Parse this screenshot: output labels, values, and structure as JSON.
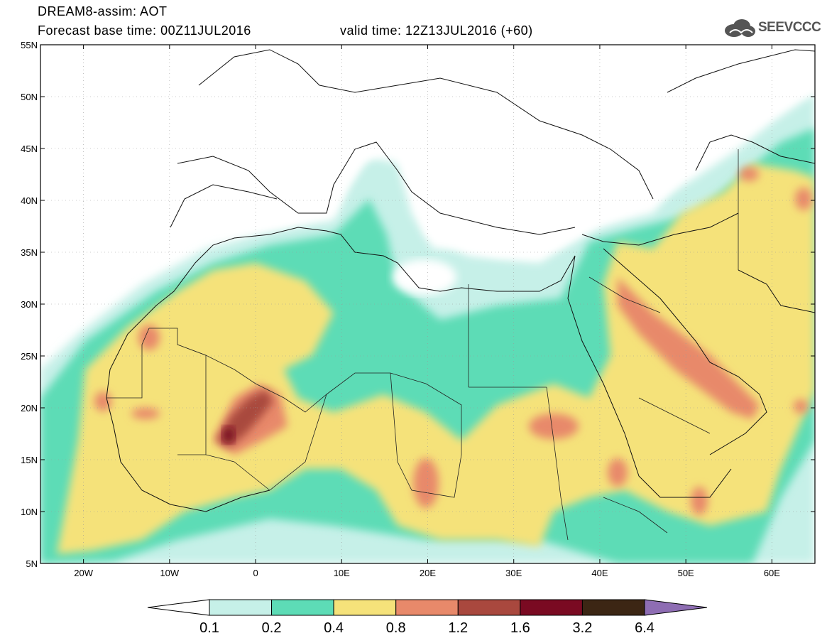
{
  "title": {
    "line1": "DREAM8-assim: AOT",
    "base_time": "Forecast base time: 00Z11JUL2016",
    "valid_time": "valid time: 12Z13JUL2016 (+60)"
  },
  "logo": {
    "text": "SEEVCCC",
    "icon": "cloud-icon"
  },
  "map": {
    "lat_labels": [
      "55N",
      "50N",
      "45N",
      "40N",
      "35N",
      "30N",
      "25N",
      "20N",
      "15N",
      "10N",
      "5N"
    ],
    "lon_labels": [
      "20W",
      "10W",
      "0",
      "10E",
      "20E",
      "30E",
      "40E",
      "50E",
      "60E"
    ],
    "lat_values": [
      55,
      50,
      45,
      40,
      35,
      30,
      25,
      20,
      15,
      10,
      5
    ],
    "lon_values": [
      -20,
      -10,
      0,
      10,
      20,
      30,
      40,
      50,
      60
    ],
    "lon_range": [
      -25,
      65
    ],
    "lat_range": [
      5,
      55
    ]
  },
  "colorbar": {
    "labels": [
      "0.1",
      "0.2",
      "0.4",
      "0.8",
      "1.2",
      "1.6",
      "3.2",
      "6.4"
    ],
    "colors": [
      "#ffffff",
      "#c6f0e8",
      "#5ddcb6",
      "#f5e27a",
      "#e8896a",
      "#a9483e",
      "#7a0a22",
      "#3c2614",
      "#8e6db3"
    ]
  }
}
